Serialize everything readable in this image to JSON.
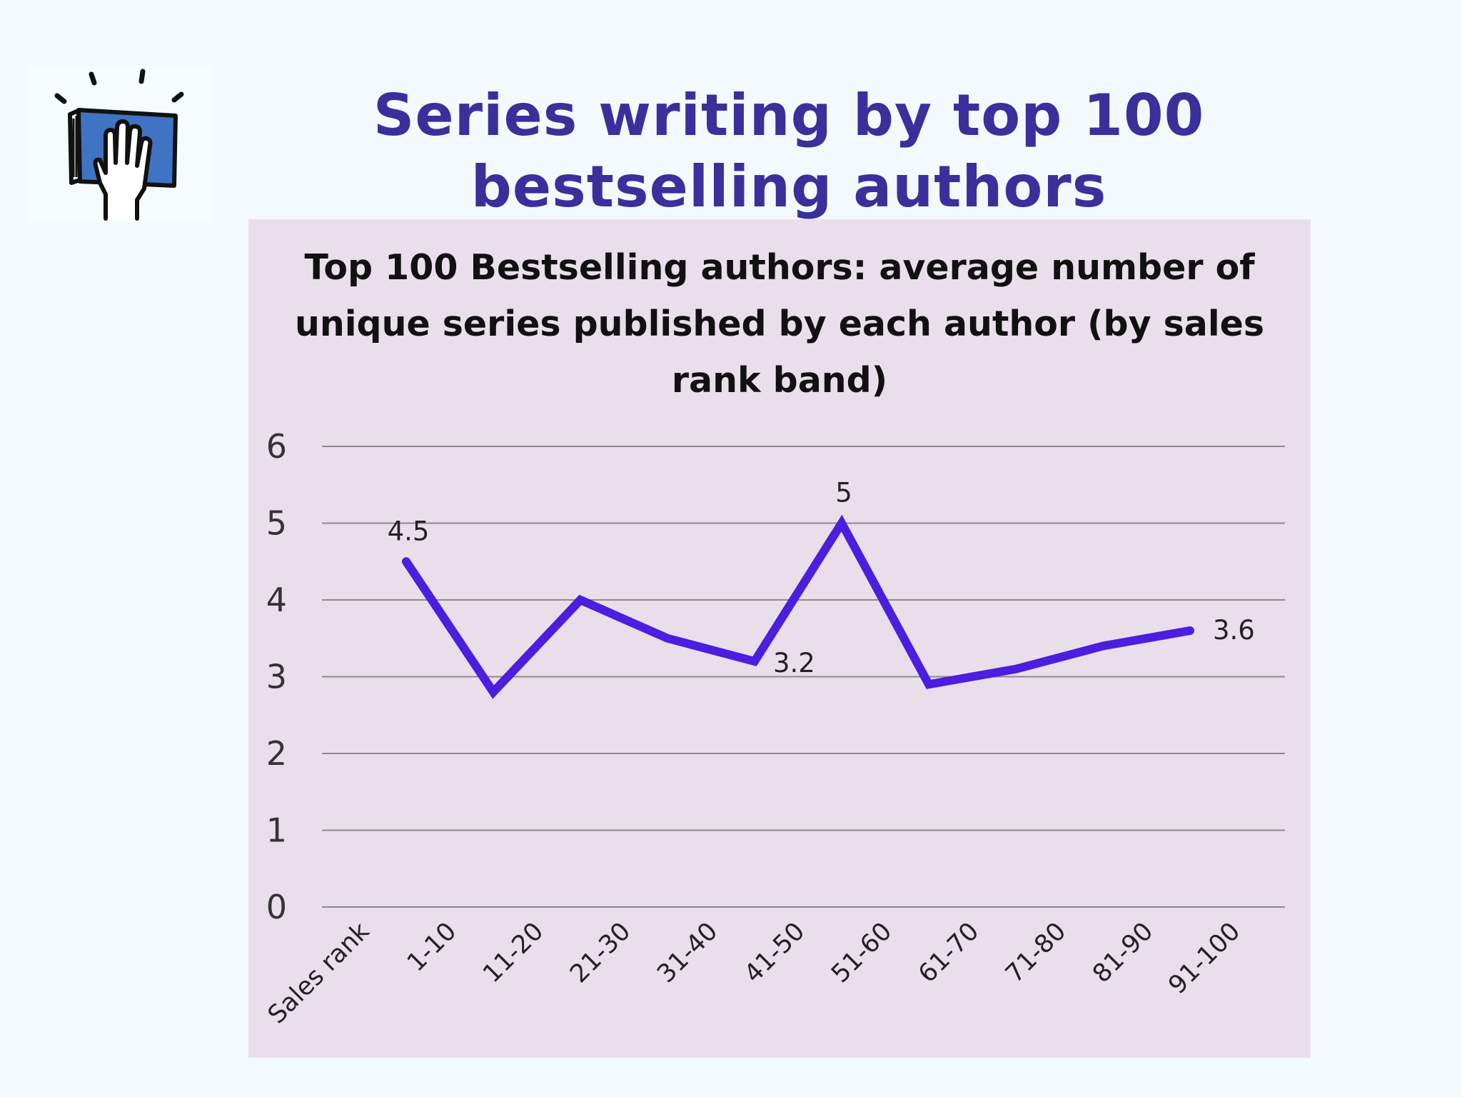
{
  "slide": {
    "title": "Series writing by top 100 bestselling authors"
  },
  "logo": {
    "icon": "book-hand-icon",
    "colors": {
      "book": "#3f74c4",
      "outline": "#111111"
    }
  },
  "colors": {
    "background": "#f3fafd",
    "title": "#3b2f9c",
    "panel": "#e9dfeb",
    "line": "#4b1ee0",
    "grid": "#8a8a8a"
  },
  "chart_data": {
    "type": "line",
    "title": "Top 100 Bestselling authors:  average number of unique series published by each author  (by sales rank band)",
    "xlabel": "",
    "ylabel": "",
    "categories": [
      "Sales rank",
      "1-10",
      "11-20",
      "21-30",
      "31-40",
      "41-50",
      "51-60",
      "61-70",
      "71-80",
      "81-90",
      "91-100"
    ],
    "series": [
      {
        "values": [
          null,
          4.5,
          2.8,
          4.0,
          3.5,
          3.2,
          5.0,
          2.9,
          3.1,
          3.4,
          3.6
        ],
        "color": "#4b1ee0"
      }
    ],
    "data_labels": [
      {
        "category": "1-10",
        "text": "4.5",
        "position": "above"
      },
      {
        "category": "41-50",
        "text": "3.2",
        "position": "below-right"
      },
      {
        "category": "51-60",
        "text": "5",
        "position": "above"
      },
      {
        "category": "91-100",
        "text": "3.6",
        "position": "right"
      }
    ],
    "ylim": [
      0,
      6
    ],
    "yticks": [
      0,
      1,
      2,
      3,
      4,
      5,
      6
    ],
    "grid": true,
    "legend": "none"
  }
}
